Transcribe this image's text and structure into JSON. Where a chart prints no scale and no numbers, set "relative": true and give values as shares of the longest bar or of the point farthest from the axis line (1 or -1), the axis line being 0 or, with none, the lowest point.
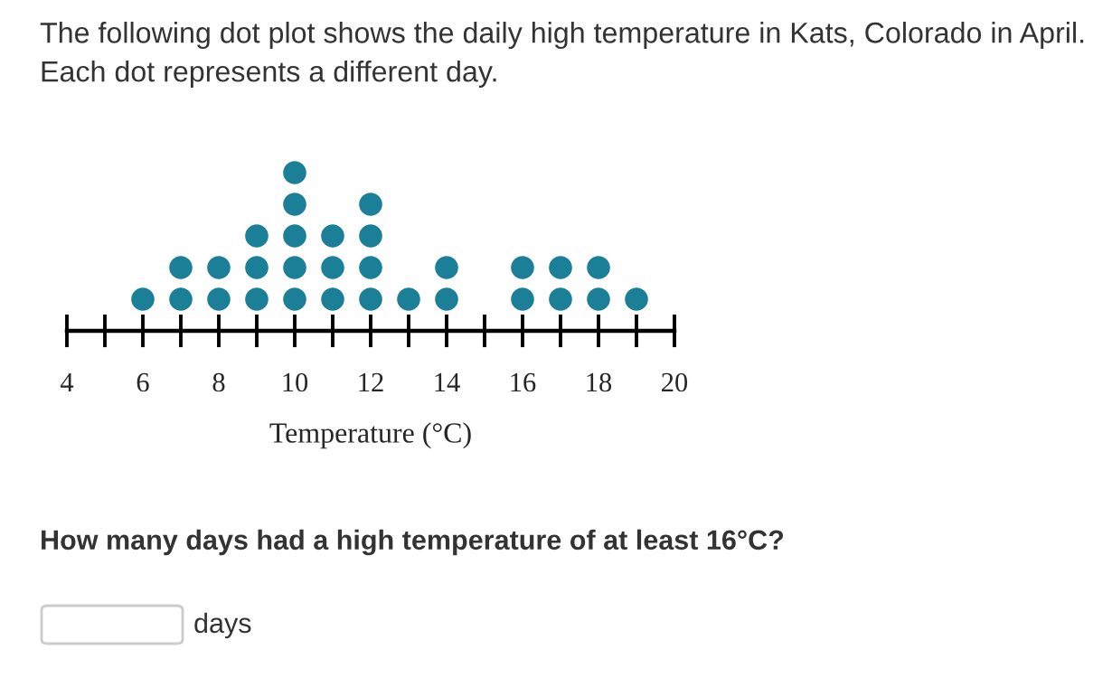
{
  "chart_data": {
    "type": "scatter",
    "relative": true,
    "title": "The following dot plot shows the daily high temperature in Kats, Colorado in April. Each dot represents a different day.",
    "xlabel": "Temperature (°C)",
    "annotations": [
      "How many days had a high temperature of at least 16°C?",
      "days"
    ],
    "x": [
      6,
      7,
      7,
      8,
      8,
      9,
      9,
      9,
      10,
      10,
      10,
      10,
      10,
      11,
      11,
      11,
      12,
      12,
      12,
      12,
      13,
      14,
      14,
      16,
      16,
      17,
      17,
      18,
      18,
      19
    ],
    "series": [
      {
        "color": "#1b7f97",
        "values": [
          0.2,
          0.2,
          0.4,
          0.2,
          0.4,
          0.2,
          0.4,
          0.6,
          0.2,
          0.4,
          0.6,
          0.8,
          1.0,
          0.2,
          0.4,
          0.6,
          0.2,
          0.4,
          0.6,
          0.8,
          0.2,
          0.2,
          0.4,
          0.2,
          0.4,
          0.2,
          0.4,
          0.2,
          0.4,
          0.2
        ]
      }
    ],
    "xlim": [
      4,
      20
    ],
    "xticks": [
      4,
      {
        "value": 5,
        "label": null
      },
      6,
      {
        "value": 7,
        "label": null
      },
      8,
      {
        "value": 9,
        "label": null
      },
      10,
      {
        "value": 11,
        "label": null
      },
      12,
      {
        "value": 13,
        "label": null
      },
      14,
      {
        "value": 15,
        "label": null
      },
      16,
      {
        "value": 17,
        "label": null
      },
      18,
      {
        "value": 19,
        "label": null
      },
      20
    ],
    "marker": "circle",
    "grid": false
  }
}
